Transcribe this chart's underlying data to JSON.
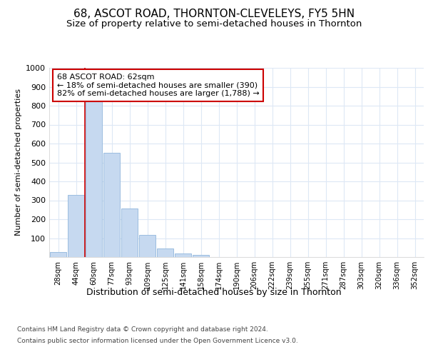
{
  "title": "68, ASCOT ROAD, THORNTON-CLEVELEYS, FY5 5HN",
  "subtitle": "Size of property relative to semi-detached houses in Thornton",
  "xlabel": "Distribution of semi-detached houses by size in Thornton",
  "ylabel": "Number of semi-detached properties",
  "footer1": "Contains HM Land Registry data © Crown copyright and database right 2024.",
  "footer2": "Contains public sector information licensed under the Open Government Licence v3.0.",
  "categories": [
    "28sqm",
    "44sqm",
    "60sqm",
    "77sqm",
    "93sqm",
    "109sqm",
    "125sqm",
    "141sqm",
    "158sqm",
    "174sqm",
    "190sqm",
    "206sqm",
    "222sqm",
    "239sqm",
    "255sqm",
    "271sqm",
    "287sqm",
    "303sqm",
    "320sqm",
    "336sqm",
    "352sqm"
  ],
  "values": [
    25,
    330,
    830,
    550,
    258,
    117,
    44,
    18,
    10,
    0,
    0,
    0,
    0,
    0,
    0,
    0,
    0,
    0,
    0,
    0,
    0
  ],
  "bar_color": "#c6d9f0",
  "bar_edge_color": "#9bbde0",
  "red_line_x": 1.5,
  "annotation_label": "68 ASCOT ROAD: 62sqm",
  "annotation_line1": "← 18% of semi-detached houses are smaller (390)",
  "annotation_line2": "82% of semi-detached houses are larger (1,788) →",
  "ylim": [
    0,
    1000
  ],
  "yticks": [
    0,
    100,
    200,
    300,
    400,
    500,
    600,
    700,
    800,
    900,
    1000
  ],
  "bg_color": "#ffffff",
  "plot_bg_color": "#ffffff",
  "title_fontsize": 11,
  "subtitle_fontsize": 9.5,
  "annotation_box_color": "#ffffff",
  "annotation_box_edge": "#cc0000",
  "grid_color": "#dde8f5"
}
